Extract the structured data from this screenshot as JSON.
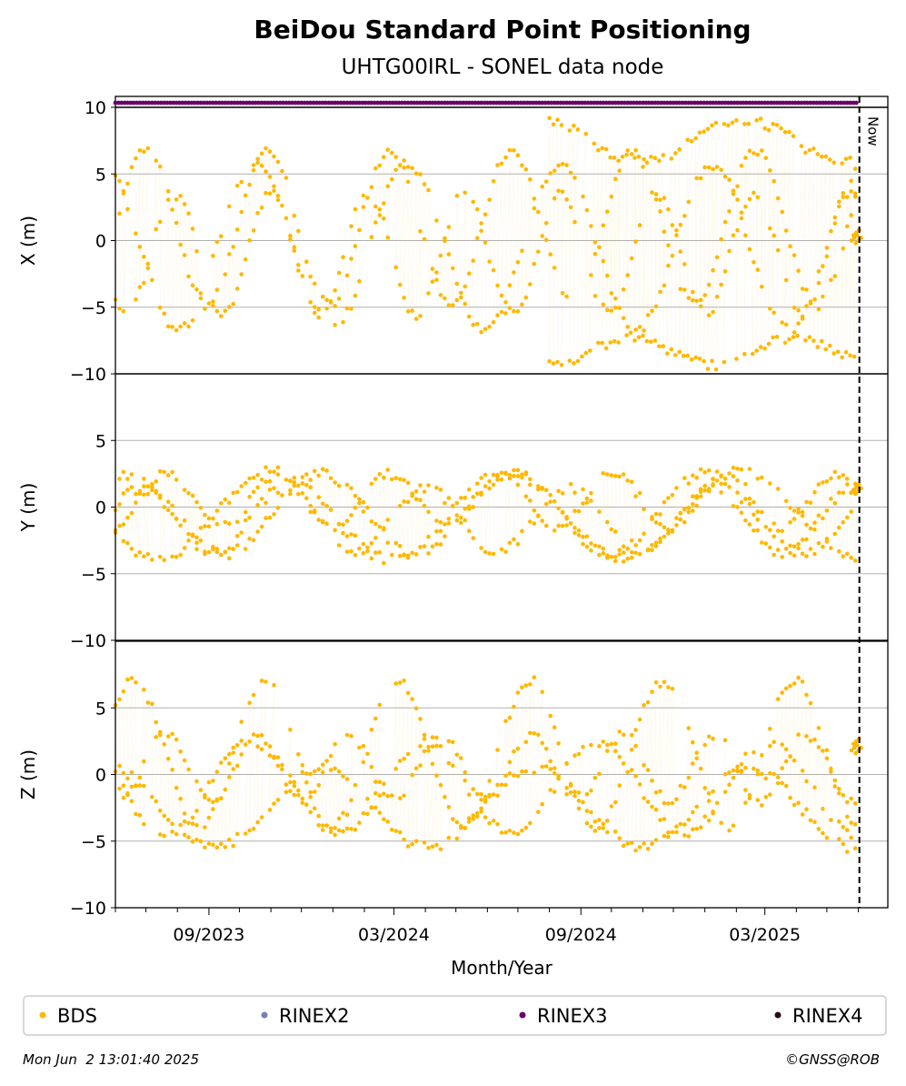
{
  "chart_data": {
    "type": "scatter",
    "title": "BeiDou Standard Point Positioning",
    "subtitle": "UHTG00IRL - SONEL data node",
    "xlabel": "Month/Year",
    "x_range": [
      "2023-06-01",
      "2025-06-30"
    ],
    "x_ticks": [
      "09/2023",
      "03/2024",
      "09/2024",
      "03/2025"
    ],
    "now_marker": {
      "date": "2025-06-02",
      "label": "Now"
    },
    "grid": "horizontal",
    "legend_placement": "bottom",
    "legend": [
      {
        "label": "BDS",
        "color": "#FFB800"
      },
      {
        "label": "RINEX2",
        "color": "#7B7BBE"
      },
      {
        "label": "RINEX3",
        "color": "#6B006B"
      },
      {
        "label": "RINEX4",
        "color": "#2A0A1A"
      }
    ],
    "rinex3_availability": {
      "color": "#6B006B",
      "from": "2023-06-01",
      "to": "2025-06-01"
    },
    "panels": [
      {
        "ylabel": "X (m)",
        "ylim": [
          -10,
          10
        ],
        "yticks": [
          "10",
          "5",
          "0",
          "−5",
          "−10"
        ],
        "tracks": [
          {
            "start": "2023-06-01",
            "end": "2025-05-31",
            "amp": 5.8,
            "period_days": 120,
            "phase": 0.0,
            "offset": 1.0
          },
          {
            "start": "2023-06-01",
            "end": "2025-05-31",
            "amp": 6.2,
            "period_days": 150,
            "phase": 2.1,
            "offset": -0.5
          },
          {
            "start": "2023-06-01",
            "end": "2025-05-31",
            "amp": 4.5,
            "period_days": 95,
            "phase": 4.0,
            "offset": -1.0
          },
          {
            "start": "2024-08-01",
            "end": "2025-05-31",
            "amp": 1.6,
            "period_days": 200,
            "phase": 1.0,
            "offset": 7.5
          },
          {
            "start": "2024-08-01",
            "end": "2025-05-31",
            "amp": 1.0,
            "period_days": 160,
            "phase": 0.5,
            "offset": -8.3
          }
        ],
        "recent": [
          {
            "date": "2025-05-28",
            "value": 0.2
          },
          {
            "date": "2025-05-30",
            "value": 0.6
          },
          {
            "date": "2025-06-01",
            "value": 0.0
          }
        ]
      },
      {
        "ylabel": "Y (m)",
        "ylim": [
          -10,
          10
        ],
        "yticks": [
          "5",
          "0",
          "−5",
          "−10"
        ],
        "tracks": [
          {
            "start": "2023-06-01",
            "end": "2025-05-31",
            "amp": 3.0,
            "period_days": 190,
            "phase": 1.2,
            "offset": -0.5
          },
          {
            "start": "2023-06-01",
            "end": "2025-05-31",
            "amp": 3.3,
            "period_days": 230,
            "phase": 3.6,
            "offset": -0.6
          },
          {
            "start": "2023-06-01",
            "end": "2025-05-31",
            "amp": 2.4,
            "period_days": 140,
            "phase": 0.4,
            "offset": -1.0
          },
          {
            "start": "2023-06-01",
            "end": "2025-05-31",
            "amp": 2.0,
            "period_days": 110,
            "phase": 5.0,
            "offset": 0.5
          }
        ],
        "recent": [
          {
            "date": "2025-05-28",
            "value": 1.3
          },
          {
            "date": "2025-05-30",
            "value": 1.5
          },
          {
            "date": "2025-06-01",
            "value": 1.2
          }
        ]
      },
      {
        "ylabel": "Z (m)",
        "ylim": [
          -10,
          10
        ],
        "yticks": [
          "5",
          "0",
          "−5",
          "−10"
        ],
        "tracks": [
          {
            "start": "2023-06-01",
            "end": "2025-05-31",
            "amp": 5.5,
            "period_days": 130,
            "phase": 0.7,
            "offset": 1.5
          },
          {
            "start": "2023-06-01",
            "end": "2025-05-31",
            "amp": 3.5,
            "period_days": 170,
            "phase": 2.9,
            "offset": -1.0
          },
          {
            "start": "2023-06-01",
            "end": "2025-05-31",
            "amp": 2.5,
            "period_days": 90,
            "phase": 4.4,
            "offset": 0.5
          },
          {
            "start": "2023-06-01",
            "end": "2025-05-31",
            "amp": 3.0,
            "period_days": 210,
            "phase": 1.8,
            "offset": -2.5
          }
        ],
        "recent": [
          {
            "date": "2025-05-28",
            "value": 2.0
          },
          {
            "date": "2025-05-30",
            "value": 2.5
          },
          {
            "date": "2025-06-01",
            "value": 1.8
          }
        ]
      }
    ]
  },
  "footer": {
    "timestamp": "Mon Jun  2 13:01:40 2025",
    "credit": "©GNSS@ROB"
  }
}
